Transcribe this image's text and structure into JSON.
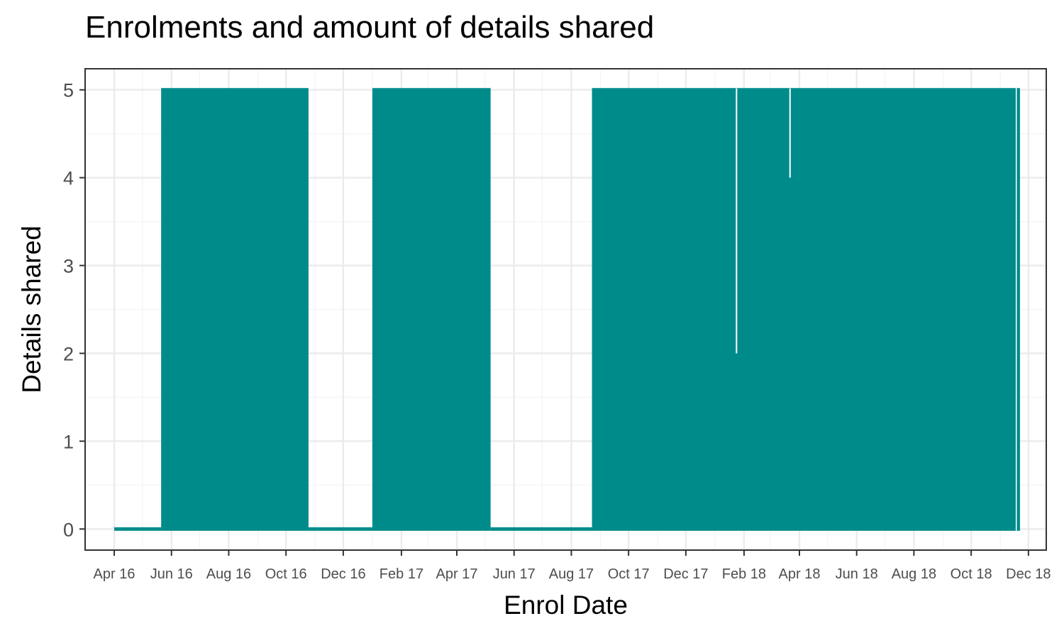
{
  "chart_data": {
    "type": "line",
    "title": "Enrolments and amount of details shared",
    "xlabel": "Enrol Date",
    "ylabel": "Details shared",
    "x_ticks": [
      "Apr 16",
      "Jun 16",
      "Aug 16",
      "Oct 16",
      "Dec 16",
      "Feb 17",
      "Apr 17",
      "Jun 17",
      "Aug 17",
      "Oct 17",
      "Dec 17",
      "Feb 18",
      "Apr 18",
      "Jun 18",
      "Aug 18",
      "Oct 18",
      "Dec 18"
    ],
    "y_ticks": [
      "0",
      "1",
      "2",
      "3",
      "4",
      "5"
    ],
    "xlim": [
      "2016-03-01",
      "2018-12-20"
    ],
    "ylim": [
      -0.24,
      5.24
    ],
    "grid": true,
    "series": [
      {
        "color": "#008B8B",
        "segments": [
          {
            "start": "2016-04-01",
            "end": "2016-05-21",
            "min": 0,
            "max": 0
          },
          {
            "start": "2016-05-21",
            "end": "2016-10-25",
            "min": 0,
            "max": 5
          },
          {
            "start": "2016-10-25",
            "end": "2017-01-01",
            "min": 0,
            "max": 0
          },
          {
            "start": "2017-01-01",
            "end": "2017-05-07",
            "min": 0,
            "max": 5
          },
          {
            "start": "2017-05-07",
            "end": "2017-08-23",
            "min": 0,
            "max": 0
          },
          {
            "start": "2017-08-23",
            "end": "2018-11-22",
            "min": 0,
            "max": 5
          }
        ],
        "drops": [
          {
            "date": "2018-01-24",
            "value": 2
          },
          {
            "date": "2018-03-22",
            "value": 4
          }
        ]
      }
    ]
  }
}
